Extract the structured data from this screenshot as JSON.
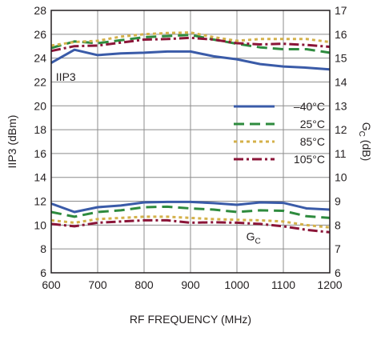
{
  "chart_data": {
    "type": "line",
    "xlabel": "RF FREQUENCY (MHz)",
    "ylabel_left": "IIP3 (dBm)",
    "ylabel_right_main": "G",
    "ylabel_right_sub": "C",
    "ylabel_right_unit": " (dB)",
    "xlim": [
      600,
      1200
    ],
    "ylim_left": [
      6,
      28
    ],
    "ylim_right": [
      6,
      17
    ],
    "x_ticks": [
      600,
      700,
      800,
      900,
      1000,
      1100,
      1200
    ],
    "y_left_ticks": [
      6,
      8,
      10,
      12,
      14,
      16,
      18,
      20,
      22,
      24,
      26,
      28
    ],
    "y_right_ticks": [
      6,
      7,
      8,
      9,
      10,
      11,
      12,
      13,
      14,
      15,
      16,
      17
    ],
    "grid": true,
    "legend_position": "right-middle",
    "annotations": {
      "iip3": "IIP3",
      "gc_main": "G",
      "gc_sub": "C"
    },
    "x": [
      600,
      650,
      700,
      750,
      800,
      850,
      900,
      950,
      1000,
      1050,
      1100,
      1150,
      1200
    ],
    "series": [
      {
        "name": "–40°C",
        "color": "#3a5ba8",
        "dash": "solid",
        "iip3": [
          23.6,
          24.7,
          24.25,
          24.4,
          24.45,
          24.55,
          24.55,
          24.15,
          23.9,
          23.5,
          23.3,
          23.2,
          23.05
        ],
        "gc": [
          8.9,
          8.55,
          8.75,
          8.82,
          8.95,
          8.97,
          8.97,
          8.92,
          8.85,
          8.95,
          8.93,
          8.7,
          8.65
        ]
      },
      {
        "name": "25°C",
        "color": "#2e8b3e",
        "dash": "dashed",
        "iip3": [
          24.85,
          25.4,
          25.25,
          25.5,
          25.75,
          25.85,
          25.95,
          25.55,
          25.2,
          24.9,
          24.75,
          24.75,
          24.45
        ],
        "gc": [
          8.55,
          8.35,
          8.55,
          8.62,
          8.75,
          8.77,
          8.7,
          8.65,
          8.55,
          8.62,
          8.6,
          8.37,
          8.3
        ]
      },
      {
        "name": "85°C",
        "color": "#d4b14a",
        "dash": "dotted",
        "iip3": [
          25.05,
          25.35,
          25.45,
          25.8,
          26.0,
          26.1,
          26.15,
          25.75,
          25.45,
          25.6,
          25.6,
          25.6,
          25.35
        ],
        "gc": [
          8.2,
          8.1,
          8.25,
          8.3,
          8.35,
          8.35,
          8.3,
          8.25,
          8.22,
          8.2,
          8.15,
          8.0,
          7.9
        ]
      },
      {
        "name": "105°C",
        "color": "#8b1538",
        "dash": "dashdot",
        "iip3": [
          24.6,
          25.0,
          25.05,
          25.3,
          25.55,
          25.6,
          25.7,
          25.55,
          25.25,
          25.15,
          25.2,
          25.1,
          24.95
        ],
        "gc": [
          8.05,
          7.95,
          8.1,
          8.15,
          8.2,
          8.2,
          8.1,
          8.12,
          8.1,
          8.05,
          7.95,
          7.8,
          7.7
        ]
      }
    ]
  }
}
